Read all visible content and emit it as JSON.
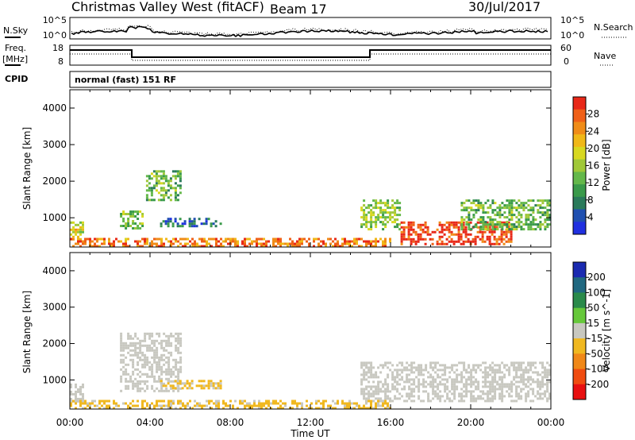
{
  "header": {
    "station": "Christmas Valley West (fitACF)",
    "beam": "Beam 17",
    "date": "30/Jul/2017"
  },
  "noise_panel": {
    "left_label": "N.Sky",
    "left_ticks": [
      "10^5",
      "10^0"
    ],
    "right_ticks": [
      "10^5",
      "10^0"
    ],
    "right_label": "N.Search"
  },
  "freq_panel": {
    "left_label_1": "Freq.",
    "left_label_2": "[MHz]",
    "left_ticks": [
      "18",
      "8"
    ],
    "right_ticks": [
      "60",
      "0"
    ],
    "right_label": "Nave"
  },
  "cpid_panel": {
    "label": "CPID",
    "mode_text": "normal (fast) 151 RF"
  },
  "chart_data": [
    {
      "type": "heatmap",
      "name": "power",
      "ylabel": "Slant Range [km]",
      "y_ticks": [
        "4000",
        "3000",
        "2000",
        "1000"
      ],
      "y_tick_values": [
        4000,
        3000,
        2000,
        1000
      ],
      "ylim": [
        200,
        4500
      ],
      "xlim_hours": [
        0,
        24
      ],
      "colorbar": {
        "label": "Power [dB]",
        "ticks": [
          "28",
          "24",
          "20",
          "16",
          "12",
          "8",
          "4"
        ],
        "range": [
          0,
          30
        ],
        "colors": [
          "#2030e0",
          "#2050b0",
          "#2a7a5a",
          "#3a9a4a",
          "#64b84a",
          "#a0c838",
          "#d8d820",
          "#f0b818",
          "#f08c18",
          "#f06018",
          "#e82818"
        ]
      },
      "echo_regions": [
        {
          "t_start": 0.0,
          "t_end": 0.6,
          "r_min": 400,
          "r_max": 900,
          "power_db": 18
        },
        {
          "t_start": 2.5,
          "t_end": 3.6,
          "r_min": 700,
          "r_max": 1200,
          "power_db": 14
        },
        {
          "t_start": 3.8,
          "t_end": 5.5,
          "r_min": 1500,
          "r_max": 2300,
          "power_db": 12
        },
        {
          "t_start": 4.5,
          "t_end": 7.5,
          "r_min": 800,
          "r_max": 1000,
          "power_db": 6
        },
        {
          "t_start": 0.0,
          "t_end": 16.0,
          "r_min": 200,
          "r_max": 450,
          "power_db": 24
        },
        {
          "t_start": 14.5,
          "t_end": 16.5,
          "r_min": 700,
          "r_max": 1500,
          "power_db": 14
        },
        {
          "t_start": 16.5,
          "t_end": 22.0,
          "r_min": 300,
          "r_max": 900,
          "power_db": 28
        },
        {
          "t_start": 19.5,
          "t_end": 24.0,
          "r_min": 700,
          "r_max": 1500,
          "power_db": 12
        }
      ]
    },
    {
      "type": "heatmap",
      "name": "velocity",
      "ylabel": "Slant Range [km]",
      "xlabel": "Time UT",
      "x_ticks": [
        "00:00",
        "04:00",
        "08:00",
        "12:00",
        "16:00",
        "20:00",
        "00:00"
      ],
      "x_tick_values": [
        0,
        4,
        8,
        12,
        16,
        20,
        24
      ],
      "y_ticks": [
        "4000",
        "3000",
        "2000",
        "1000"
      ],
      "y_tick_values": [
        4000,
        3000,
        2000,
        1000
      ],
      "ylim": [
        200,
        4500
      ],
      "xlim_hours": [
        0,
        24
      ],
      "colorbar": {
        "label": "Velocity [m s^-1]",
        "ticks": [
          "200",
          "100",
          "50",
          "15",
          "-15",
          "-50",
          "-100",
          "-200"
        ],
        "range": [
          -250,
          250
        ],
        "colors": [
          "#1a2ab0",
          "#206880",
          "#2a8a4a",
          "#66c83a",
          "#c8c8c0",
          "#f0b820",
          "#f08818",
          "#f04c10",
          "#e81010"
        ]
      },
      "echo_regions": [
        {
          "t_start": 0.0,
          "t_end": 0.6,
          "r_min": 400,
          "r_max": 900,
          "velocity": 0
        },
        {
          "t_start": 2.5,
          "t_end": 5.5,
          "r_min": 700,
          "r_max": 2300,
          "velocity": 0
        },
        {
          "t_start": 4.5,
          "t_end": 7.5,
          "r_min": 800,
          "r_max": 1000,
          "velocity": -40
        },
        {
          "t_start": 0.0,
          "t_end": 16.0,
          "r_min": 200,
          "r_max": 450,
          "velocity": -40
        },
        {
          "t_start": 14.5,
          "t_end": 24.0,
          "r_min": 400,
          "r_max": 1500,
          "velocity": 0
        }
      ]
    }
  ]
}
